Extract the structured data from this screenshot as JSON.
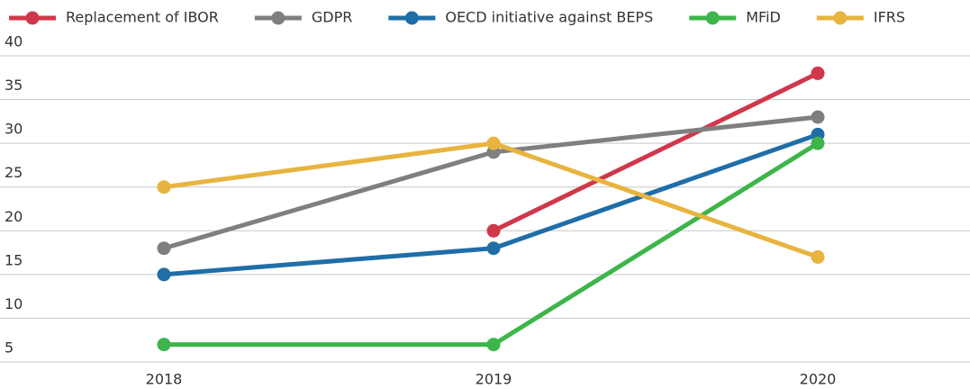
{
  "chart_data": {
    "type": "line",
    "categories": [
      "2018",
      "2019",
      "2020"
    ],
    "series": [
      {
        "name": "Replacement of IBOR",
        "color": "#d0374b",
        "values": [
          null,
          20,
          38
        ]
      },
      {
        "name": "GDPR",
        "color": "#7f7f7f",
        "values": [
          18,
          29,
          33
        ]
      },
      {
        "name": "OECD initiative against BEPS",
        "color": "#1f6ea8",
        "values": [
          15,
          18,
          31
        ]
      },
      {
        "name": "MFiD",
        "color": "#3db54a",
        "values": [
          7,
          7,
          30
        ]
      },
      {
        "name": "IFRS",
        "color": "#e8b43f",
        "values": [
          25,
          30,
          17
        ]
      }
    ],
    "ylim": [
      5,
      40
    ],
    "yticks": [
      5,
      10,
      15,
      20,
      25,
      30,
      35,
      40
    ],
    "grid": true,
    "legend": "top"
  }
}
